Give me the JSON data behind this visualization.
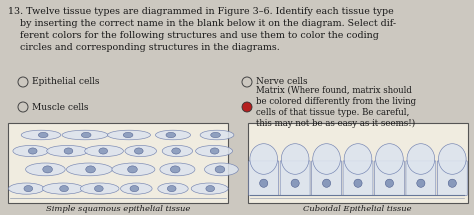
{
  "bg_color": "#ccc8c0",
  "title_num": "13.",
  "title_text": " Twelve tissue types are diagrammed in Figure 3–6. Identify each tissue type\n    by inserting the correct name in the blank below it on the diagram. Select dif-\n    ferent colors for the following structures and use them to color the coding\n    circles and corresponding structures in the diagrams.",
  "item_row1_left_label": "Epithelial cells",
  "item_row1_right_label": "Nerve cells",
  "item_row2_left_label": "Muscle cells",
  "item_row2_right_label": "Matrix (Where found, matrix should\nbe colored differently from the living\ncells of that tissue type. Be careful,\nthis may not be as easy as it seems!)",
  "matrix_circle_color": "#b52020",
  "diagram_left_caption": "Simple squamous epithelial tissue",
  "diagram_right_caption": "Cuboidal Epithelial tissue",
  "text_color": "#1a1a1a",
  "diagram_bg": "#f0ece0",
  "cell_edge_color": "#6677aa",
  "cell_face_color": "#dde4ee",
  "font_size_title": 6.8,
  "font_size_items": 6.5,
  "font_size_caption": 6.0
}
